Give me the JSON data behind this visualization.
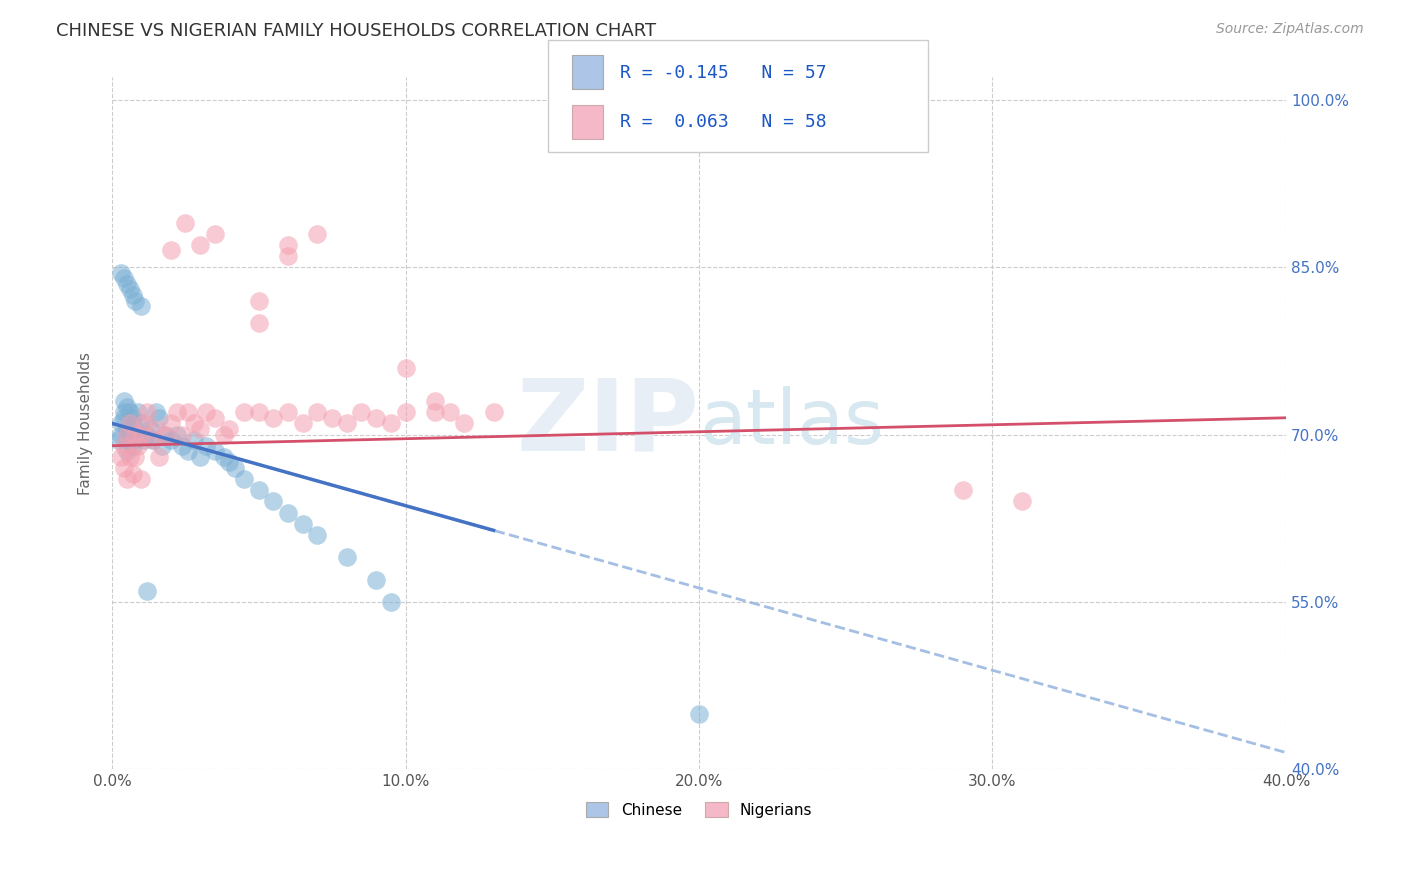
{
  "title": "CHINESE VS NIGERIAN FAMILY HOUSEHOLDS CORRELATION CHART",
  "source": "Source: ZipAtlas.com",
  "ylabel": "Family Households",
  "xlim": [
    0.0,
    0.4
  ],
  "ylim": [
    0.4,
    1.02
  ],
  "yticks": [
    0.4,
    0.55,
    0.7,
    0.85,
    1.0
  ],
  "xticks": [
    0.0,
    0.1,
    0.2,
    0.3,
    0.4
  ],
  "xtick_labels": [
    "0.0%",
    "10.0%",
    "20.0%",
    "30.0%",
    "40.0%"
  ],
  "ytick_labels": [
    "40.0%",
    "55.0%",
    "70.0%",
    "85.0%",
    "100.0%"
  ],
  "chinese_color": "#7bafd4",
  "nigerian_color": "#f4a0b0",
  "trend_chinese_solid_color": "#4472c4",
  "trend_chinese_dash_color": "#9ab8e0",
  "trend_nigerian_color": "#d4506a",
  "watermark": "ZIPatlas",
  "background_color": "#ffffff",
  "grid_color": "#cccccc",
  "legend_color_chinese": "#adc6e8",
  "legend_color_nigerian": "#f4b8c8",
  "title_color": "#333333",
  "source_color": "#999999",
  "tick_color_y": "#4472c4",
  "tick_color_x": "#555555",
  "ylabel_color": "#666666",
  "chinese_scatter_x": [
    0.002,
    0.003,
    0.003,
    0.004,
    0.004,
    0.004,
    0.005,
    0.005,
    0.005,
    0.005,
    0.006,
    0.006,
    0.006,
    0.007,
    0.007,
    0.008,
    0.008,
    0.009,
    0.01,
    0.01,
    0.011,
    0.012,
    0.013,
    0.014,
    0.015,
    0.016,
    0.017,
    0.018,
    0.02,
    0.022,
    0.024,
    0.026,
    0.028,
    0.03,
    0.032,
    0.035,
    0.038,
    0.04,
    0.042,
    0.045,
    0.05,
    0.055,
    0.06,
    0.065,
    0.07,
    0.08,
    0.09,
    0.095,
    0.003,
    0.004,
    0.005,
    0.006,
    0.007,
    0.008,
    0.01,
    0.012,
    0.2
  ],
  "chinese_scatter_y": [
    0.695,
    0.7,
    0.71,
    0.72,
    0.73,
    0.715,
    0.725,
    0.705,
    0.695,
    0.685,
    0.72,
    0.71,
    0.7,
    0.69,
    0.715,
    0.705,
    0.695,
    0.72,
    0.7,
    0.71,
    0.695,
    0.7,
    0.705,
    0.695,
    0.72,
    0.715,
    0.69,
    0.7,
    0.695,
    0.7,
    0.69,
    0.685,
    0.695,
    0.68,
    0.69,
    0.685,
    0.68,
    0.675,
    0.67,
    0.66,
    0.65,
    0.64,
    0.63,
    0.62,
    0.61,
    0.59,
    0.57,
    0.55,
    0.845,
    0.84,
    0.835,
    0.83,
    0.825,
    0.82,
    0.815,
    0.56,
    0.45
  ],
  "nigerian_scatter_x": [
    0.003,
    0.004,
    0.004,
    0.005,
    0.005,
    0.006,
    0.006,
    0.007,
    0.008,
    0.008,
    0.009,
    0.01,
    0.01,
    0.011,
    0.012,
    0.014,
    0.015,
    0.016,
    0.018,
    0.02,
    0.022,
    0.024,
    0.026,
    0.028,
    0.03,
    0.032,
    0.035,
    0.038,
    0.04,
    0.045,
    0.05,
    0.055,
    0.06,
    0.065,
    0.07,
    0.075,
    0.08,
    0.085,
    0.09,
    0.095,
    0.1,
    0.11,
    0.115,
    0.12,
    0.13,
    0.05,
    0.06,
    0.07,
    0.1,
    0.11,
    0.05,
    0.06,
    0.02,
    0.025,
    0.03,
    0.035,
    0.29,
    0.31
  ],
  "nigerian_scatter_y": [
    0.68,
    0.69,
    0.67,
    0.66,
    0.7,
    0.68,
    0.71,
    0.665,
    0.7,
    0.68,
    0.69,
    0.7,
    0.66,
    0.71,
    0.72,
    0.695,
    0.705,
    0.68,
    0.7,
    0.71,
    0.72,
    0.7,
    0.72,
    0.71,
    0.705,
    0.72,
    0.715,
    0.7,
    0.705,
    0.72,
    0.72,
    0.715,
    0.72,
    0.71,
    0.72,
    0.715,
    0.71,
    0.72,
    0.715,
    0.71,
    0.72,
    0.72,
    0.72,
    0.71,
    0.72,
    0.8,
    0.87,
    0.88,
    0.76,
    0.73,
    0.82,
    0.86,
    0.865,
    0.89,
    0.87,
    0.88,
    0.65,
    0.64
  ],
  "trend_chinese_x0": 0.0,
  "trend_chinese_y0": 0.71,
  "trend_chinese_x1": 0.4,
  "trend_chinese_y1": 0.415,
  "trend_chinese_solid_x1": 0.13,
  "trend_nigerian_x0": 0.0,
  "trend_nigerian_y0": 0.69,
  "trend_nigerian_x1": 0.4,
  "trend_nigerian_y1": 0.715
}
